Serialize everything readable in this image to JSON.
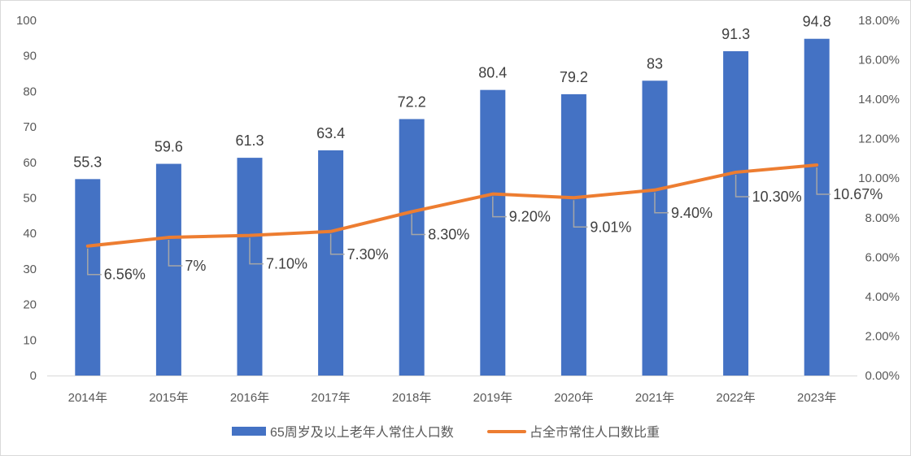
{
  "chart_data": {
    "type": "bar",
    "categories": [
      "2014年",
      "2015年",
      "2016年",
      "2017年",
      "2018年",
      "2019年",
      "2020年",
      "2021年",
      "2022年",
      "2023年"
    ],
    "series": [
      {
        "name": "65周岁及以上老年人常住人口数",
        "type": "bar",
        "axis": "left",
        "color": "#4472c4",
        "values": [
          55.3,
          59.6,
          61.3,
          63.4,
          72.2,
          80.4,
          79.2,
          83,
          91.3,
          94.8
        ],
        "labels": [
          "55.3",
          "59.6",
          "61.3",
          "63.4",
          "72.2",
          "80.4",
          "79.2",
          "83",
          "91.3",
          "94.8"
        ]
      },
      {
        "name": "占全市常住人口数比重",
        "type": "line",
        "axis": "right",
        "color": "#ed7d31",
        "values": [
          6.56,
          7.0,
          7.1,
          7.3,
          8.3,
          9.2,
          9.01,
          9.4,
          10.3,
          10.67
        ],
        "labels": [
          "6.56%",
          "7%",
          "7.10%",
          "7.30%",
          "8.30%",
          "9.20%",
          "9.01%",
          "9.40%",
          "10.30%",
          "10.67%"
        ]
      }
    ],
    "y_left": {
      "ylim": [
        0,
        100
      ],
      "ticks": [
        "0",
        "10",
        "20",
        "30",
        "40",
        "50",
        "60",
        "70",
        "80",
        "90",
        "100"
      ]
    },
    "y_right": {
      "ylim": [
        0,
        18
      ],
      "ticks": [
        "0.00%",
        "2.00%",
        "4.00%",
        "6.00%",
        "8.00%",
        "10.00%",
        "12.00%",
        "14.00%",
        "16.00%",
        "18.00%"
      ]
    },
    "grid": false,
    "legend_position": "bottom"
  }
}
